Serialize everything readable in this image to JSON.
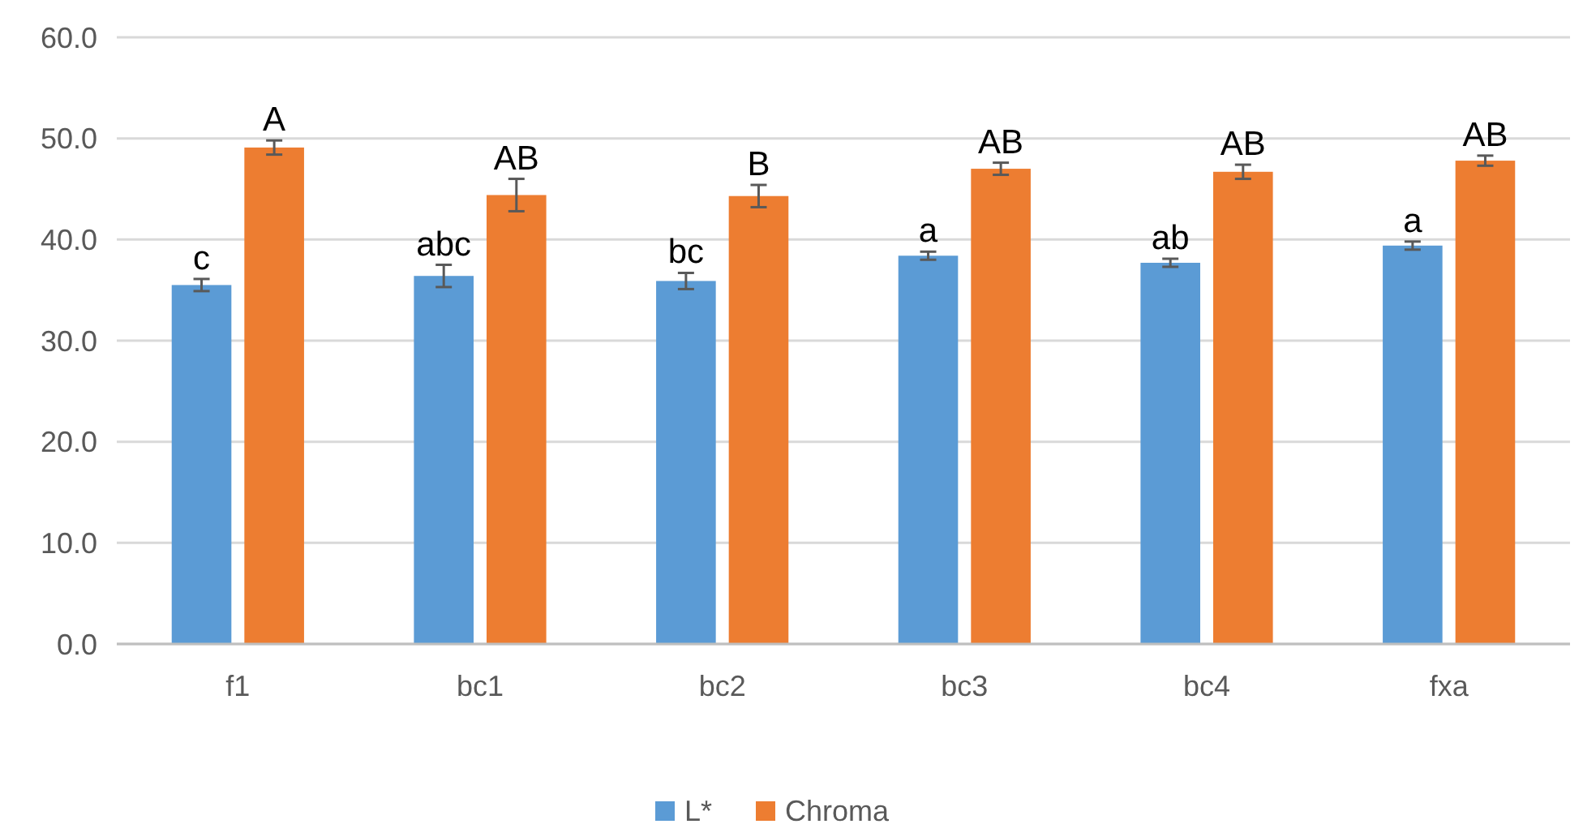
{
  "chart_data": {
    "type": "bar",
    "categories": [
      "f1",
      "bc1",
      "bc2",
      "bc3",
      "bc4",
      "fxa"
    ],
    "series": [
      {
        "name": "L*",
        "color": "#5b9bd5",
        "values": [
          35.5,
          36.4,
          35.9,
          38.4,
          37.7,
          39.4
        ],
        "errors": [
          0.6,
          1.1,
          0.8,
          0.4,
          0.4,
          0.4
        ],
        "value_labels": [
          "c",
          "abc",
          "bc",
          "a",
          "ab",
          "a"
        ]
      },
      {
        "name": "Chroma",
        "color": "#ed7d31",
        "values": [
          49.1,
          44.4,
          44.3,
          47.0,
          46.7,
          47.8
        ],
        "errors": [
          0.7,
          1.6,
          1.1,
          0.6,
          0.7,
          0.5
        ],
        "value_labels": [
          "A",
          "AB",
          "B",
          "AB",
          "AB",
          "AB"
        ]
      }
    ],
    "ylim": [
      0,
      60
    ],
    "yticks": [
      {
        "value": 0,
        "label": "0.0"
      },
      {
        "value": 10,
        "label": "10.0"
      },
      {
        "value": 20,
        "label": "20.0"
      },
      {
        "value": 30,
        "label": "30.0"
      },
      {
        "value": 40,
        "label": "40.0"
      },
      {
        "value": 50,
        "label": "50.0"
      },
      {
        "value": 60,
        "label": "60.0"
      }
    ],
    "grid": "y",
    "legend": "bottom"
  }
}
